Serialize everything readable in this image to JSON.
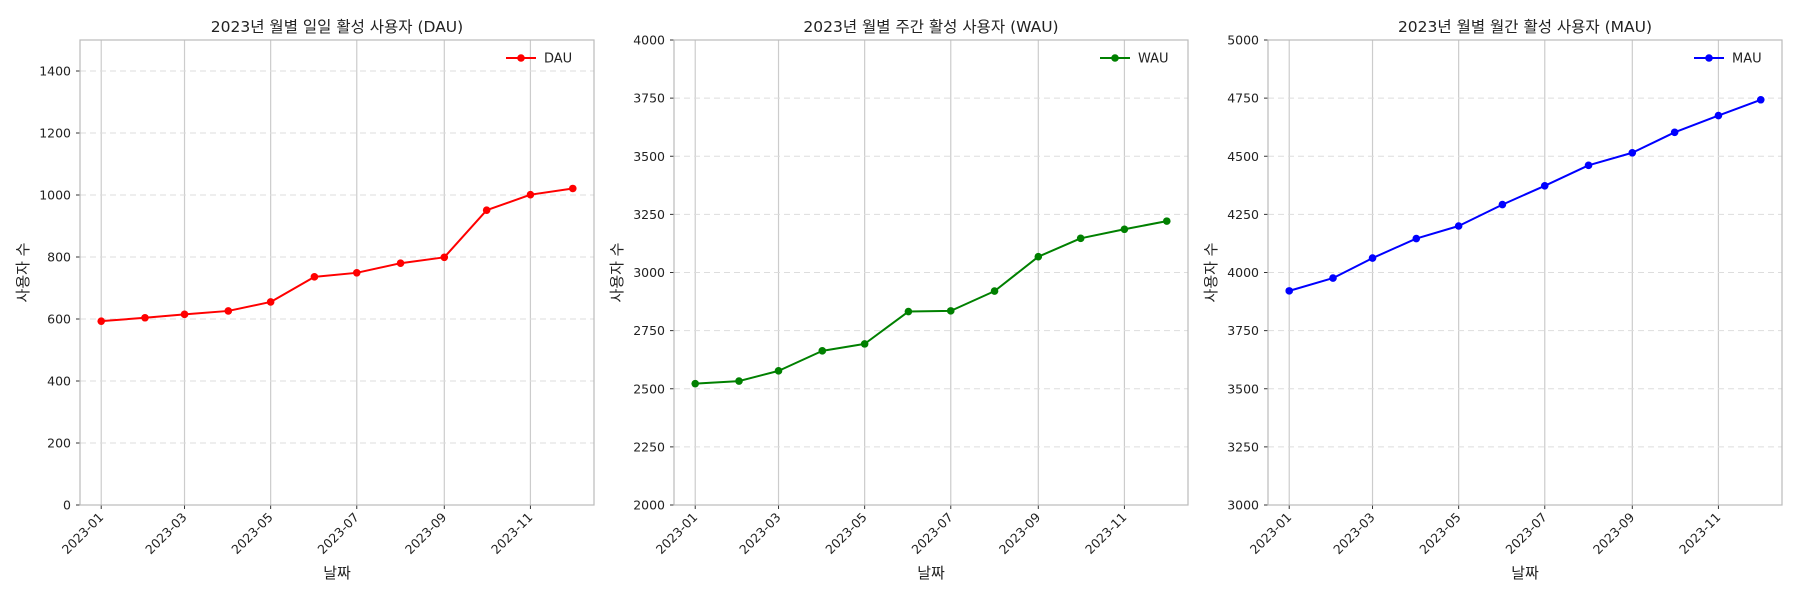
{
  "chart_data": [
    {
      "type": "line",
      "title": "2023년 월별 일일 활성 사용자 (DAU)",
      "xlabel": "날짜",
      "ylabel": "사용자 수",
      "x": [
        "2023-01-01",
        "2023-02-01",
        "2023-03-01",
        "2023-04-01",
        "2023-05-01",
        "2023-06-01",
        "2023-07-01",
        "2023-08-01",
        "2023-09-01",
        "2023-10-01",
        "2023-11-01",
        "2023-12-01"
      ],
      "x_ticks": [
        "2023-01",
        "2023-03",
        "2023-05",
        "2023-07",
        "2023-09",
        "2023-11"
      ],
      "y_ticks": [
        "0",
        "200",
        "400",
        "600",
        "800",
        "1000",
        "1200",
        "1400"
      ],
      "ylim": [
        0,
        1500
      ],
      "series": [
        {
          "name": "DAU",
          "values": [
            593,
            604,
            615,
            626,
            655,
            736,
            749,
            780,
            799,
            951,
            1001,
            1021
          ],
          "color": "#ff0000"
        }
      ],
      "legend": "top-right",
      "grid": "vertical solid at x ticks, horizontal dashed at y ticks"
    },
    {
      "type": "line",
      "title": "2023년 월별 주간 활성 사용자 (WAU)",
      "xlabel": "날짜",
      "ylabel": "사용자 수",
      "x": [
        "2023-01-01",
        "2023-02-01",
        "2023-03-01",
        "2023-04-01",
        "2023-05-01",
        "2023-06-01",
        "2023-07-01",
        "2023-08-01",
        "2023-09-01",
        "2023-10-01",
        "2023-11-01",
        "2023-12-01"
      ],
      "x_ticks": [
        "2023-01",
        "2023-03",
        "2023-05",
        "2023-07",
        "2023-09",
        "2023-11"
      ],
      "y_ticks": [
        "2000",
        "2250",
        "2500",
        "2750",
        "3000",
        "3250",
        "3500",
        "3750",
        "4000"
      ],
      "ylim": [
        2000,
        4000
      ],
      "series": [
        {
          "name": "WAU",
          "values": [
            2522,
            2533,
            2577,
            2663,
            2693,
            2832,
            2835,
            2920,
            3068,
            3147,
            3186,
            3221
          ],
          "color": "#008000"
        }
      ],
      "legend": "top-right",
      "grid": "vertical solid at x ticks, horizontal dashed at y ticks"
    },
    {
      "type": "line",
      "title": "2023년 월별 월간 활성 사용자 (MAU)",
      "xlabel": "날짜",
      "ylabel": "사용자 수",
      "x": [
        "2023-01-01",
        "2023-02-01",
        "2023-03-01",
        "2023-04-01",
        "2023-05-01",
        "2023-06-01",
        "2023-07-01",
        "2023-08-01",
        "2023-09-01",
        "2023-10-01",
        "2023-11-01",
        "2023-12-01"
      ],
      "x_ticks": [
        "2023-01",
        "2023-03",
        "2023-05",
        "2023-07",
        "2023-09",
        "2023-11"
      ],
      "y_ticks": [
        "3000",
        "3250",
        "3500",
        "3750",
        "4000",
        "4250",
        "4500",
        "4750",
        "5000"
      ],
      "ylim": [
        3000,
        5000
      ],
      "series": [
        {
          "name": "MAU",
          "values": [
            3921,
            3976,
            4062,
            4146,
            4200,
            4292,
            4373,
            4461,
            4515,
            4603,
            4675,
            4743
          ],
          "color": "#0000ff"
        }
      ],
      "legend": "top-right",
      "grid": "vertical solid at x ticks, horizontal dashed at y ticks"
    }
  ]
}
